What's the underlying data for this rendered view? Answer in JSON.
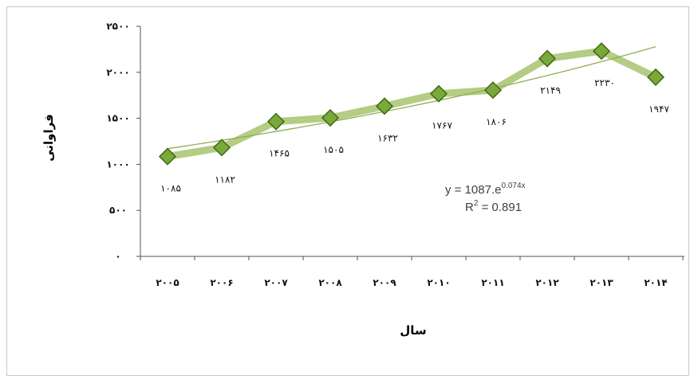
{
  "chart_data": {
    "type": "line",
    "xlabel": "سال",
    "ylabel": "فراوانی",
    "ylim": [
      0,
      2500
    ],
    "y_ticks": [
      "۰",
      "۵۰۰",
      "۱۰۰۰",
      "۱۵۰۰",
      "۲۰۰۰",
      "۲۵۰۰"
    ],
    "y_tick_values": [
      0,
      500,
      1000,
      1500,
      2000,
      2500
    ],
    "categories": [
      "۲۰۰۵",
      "۲۰۰۶",
      "۲۰۰۷",
      "۲۰۰۸",
      "۲۰۰۹",
      "۲۰۱۰",
      "۲۰۱۱",
      "۲۰۱۲",
      "۲۰۱۳",
      "۲۰۱۴"
    ],
    "values": [
      1085,
      1182,
      1465,
      1505,
      1632,
      1767,
      1806,
      2149,
      2230,
      1947
    ],
    "data_labels": [
      "۱۰۸۵",
      "۱۱۸۲",
      "۱۴۶۵",
      "۱۵۰۵",
      "۱۶۳۲",
      "۱۷۶۷",
      "۱۸۰۶",
      "۲۱۴۹",
      "۲۲۳۰",
      "۱۹۴۷"
    ],
    "trendline": {
      "type": "exponential",
      "equation_main": "y = 1087.e",
      "equation_exp": "0.074x",
      "r2_label": "R",
      "r2_sup": "2",
      "r2_value": " = 0.891"
    },
    "grid": false,
    "legend": "none",
    "colors": {
      "line": "#9bbb59",
      "marker_fill": "#7aa83a",
      "marker_stroke": "#3d6b14",
      "trend": "#8fae52",
      "axis": "#555555"
    }
  }
}
